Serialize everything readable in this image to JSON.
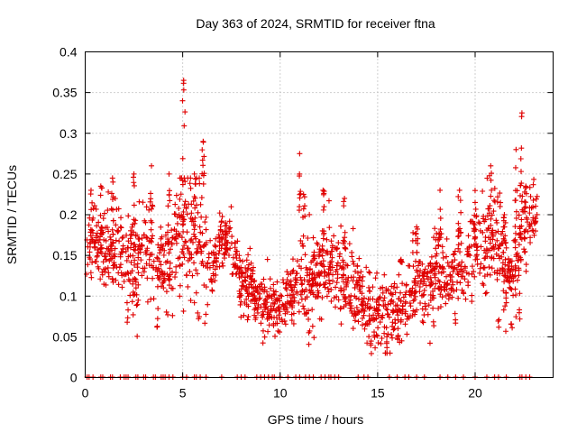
{
  "chart_data": {
    "type": "scatter",
    "title": "Day 363 of 2024, SRMTID for receiver ftna",
    "xlabel": "GPS time / hours",
    "ylabel": "SRMTID / TECUs",
    "xlim": [
      0,
      24
    ],
    "ylim": [
      0,
      0.4
    ],
    "x_ticks": [
      0,
      5,
      10,
      15,
      20
    ],
    "x_tick_labels": [
      "0",
      "5",
      "10",
      "15",
      "20"
    ],
    "y_ticks": [
      0,
      0.05,
      0.1,
      0.15,
      0.2,
      0.25,
      0.3,
      0.35,
      0.4
    ],
    "y_tick_labels": [
      "0",
      "0.05",
      "0.1",
      "0.15",
      "0.2",
      "0.25",
      "0.3",
      "0.35",
      "0.4"
    ],
    "grid": true,
    "marker": "+",
    "marker_color": "#e00000",
    "series_profile": {
      "name": "SRMTID",
      "x": [
        0.0,
        0.5,
        1.0,
        1.5,
        2.0,
        2.5,
        3.0,
        3.5,
        4.0,
        4.5,
        5.0,
        5.5,
        6.0,
        6.5,
        7.0,
        7.5,
        8.0,
        8.5,
        9.0,
        9.5,
        10.0,
        10.5,
        11.0,
        11.5,
        12.0,
        12.5,
        13.0,
        13.5,
        14.0,
        14.5,
        15.0,
        15.5,
        16.0,
        16.5,
        17.0,
        17.5,
        18.0,
        18.5,
        19.0,
        19.5,
        20.0,
        20.5,
        21.0,
        21.5,
        22.0,
        22.5,
        23.0
      ],
      "center": [
        0.16,
        0.17,
        0.15,
        0.16,
        0.15,
        0.14,
        0.16,
        0.15,
        0.13,
        0.15,
        0.2,
        0.17,
        0.17,
        0.12,
        0.17,
        0.16,
        0.12,
        0.11,
        0.09,
        0.09,
        0.09,
        0.1,
        0.11,
        0.12,
        0.13,
        0.14,
        0.12,
        0.11,
        0.1,
        0.08,
        0.08,
        0.07,
        0.08,
        0.1,
        0.12,
        0.12,
        0.13,
        0.12,
        0.13,
        0.13,
        0.16,
        0.16,
        0.18,
        0.13,
        0.12,
        0.17,
        0.2
      ],
      "spread": [
        0.04,
        0.05,
        0.05,
        0.05,
        0.05,
        0.05,
        0.06,
        0.05,
        0.05,
        0.05,
        0.09,
        0.05,
        0.07,
        0.04,
        0.03,
        0.04,
        0.04,
        0.03,
        0.03,
        0.03,
        0.03,
        0.04,
        0.05,
        0.06,
        0.05,
        0.05,
        0.05,
        0.04,
        0.04,
        0.04,
        0.04,
        0.04,
        0.04,
        0.04,
        0.04,
        0.04,
        0.04,
        0.04,
        0.04,
        0.04,
        0.05,
        0.05,
        0.05,
        0.05,
        0.05,
        0.06,
        0.03
      ],
      "peaks": [
        [
          0.3,
          0.23
        ],
        [
          0.8,
          0.235
        ],
        [
          1.4,
          0.245
        ],
        [
          2.5,
          0.25
        ],
        [
          3.4,
          0.26
        ],
        [
          4.3,
          0.25
        ],
        [
          5.05,
          0.365
        ],
        [
          5.6,
          0.25
        ],
        [
          6.05,
          0.29
        ],
        [
          7.2,
          0.19
        ],
        [
          11.0,
          0.275
        ],
        [
          11.2,
          0.225
        ],
        [
          12.2,
          0.23
        ],
        [
          13.3,
          0.22
        ],
        [
          16.2,
          0.145
        ],
        [
          17.0,
          0.185
        ],
        [
          18.2,
          0.23
        ],
        [
          19.2,
          0.23
        ],
        [
          20.0,
          0.215
        ],
        [
          20.8,
          0.26
        ],
        [
          21.5,
          0.2
        ],
        [
          22.1,
          0.28
        ],
        [
          22.4,
          0.325
        ],
        [
          22.6,
          0.235
        ]
      ],
      "lows": [
        [
          2.2,
          0.065
        ],
        [
          3.7,
          0.06
        ],
        [
          5.8,
          0.07
        ],
        [
          11.5,
          0.04
        ],
        [
          14.7,
          0.025
        ],
        [
          15.5,
          0.035
        ],
        [
          16.0,
          0.035
        ],
        [
          19.0,
          0.065
        ],
        [
          21.2,
          0.06
        ],
        [
          21.9,
          0.06
        ]
      ]
    },
    "zero_markers_x": [
      0.1,
      0.2,
      0.4,
      0.8,
      0.9,
      1.3,
      1.4,
      1.8,
      2.0,
      2.1,
      2.2,
      2.6,
      2.7,
      3.0,
      3.1,
      3.5,
      3.6,
      3.9,
      4.0,
      4.1,
      4.3,
      4.5,
      5.0,
      5.2,
      5.6,
      5.7,
      5.9,
      6.2,
      7.0,
      7.8,
      8.0,
      8.2,
      8.8,
      9.0,
      9.2,
      9.4,
      9.6,
      9.7,
      10.0,
      10.4,
      10.8,
      11.0,
      11.3,
      11.5,
      11.7,
      12.1,
      12.3,
      12.5,
      12.6,
      12.8,
      13.0,
      14.0,
      14.3,
      14.5,
      15.6,
      16.0,
      16.4,
      16.6,
      17.0,
      17.4,
      18.2,
      18.6,
      19.0,
      19.4,
      20.0,
      20.6,
      21.0,
      21.2,
      21.6,
      22.3,
      22.4,
      22.6,
      22.8
    ]
  }
}
